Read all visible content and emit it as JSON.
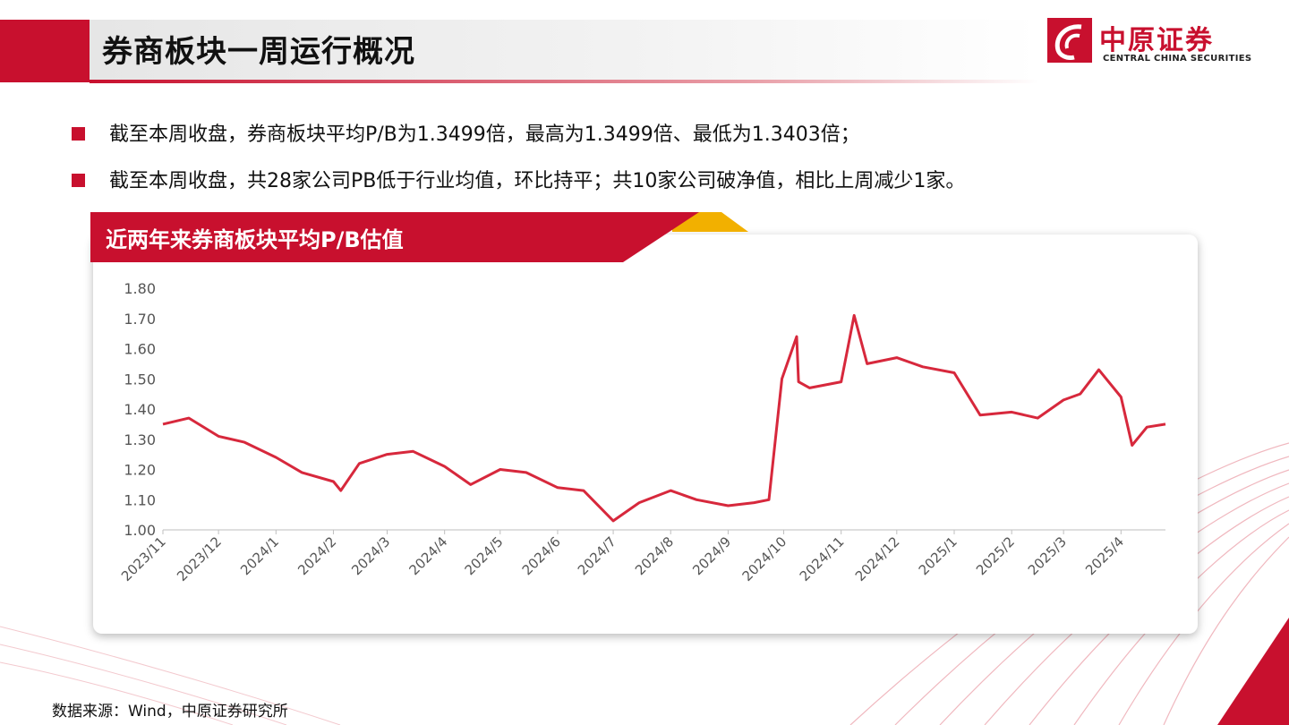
{
  "header": {
    "title": "券商板块一周运行概况",
    "logo_cn": "中原证券",
    "logo_en": "CENTRAL CHINA SECURITIES"
  },
  "bullets": [
    "截至本周收盘，券商板块平均P/B为1.3499倍，最高为1.3499倍、最低为1.3403倍；",
    "截至本周收盘，共28家公司PB低于行业均值，环比持平；共10家公司破净值，相比上周减少1家。"
  ],
  "colors": {
    "accent": "#c8102e",
    "line": "#d7283c",
    "banner_gold": "#f2b000"
  },
  "chart_data": {
    "type": "line",
    "title": "近两年来券商板块平均P/B估值",
    "ylim": [
      1.0,
      1.8
    ],
    "ytick_labels": [
      "1.00",
      "1.10",
      "1.20",
      "1.30",
      "1.40",
      "1.50",
      "1.60",
      "1.70",
      "1.80"
    ],
    "xtick_labels": [
      "2023/11",
      "2023/12",
      "2024/1",
      "2024/2",
      "2024/3",
      "2024/4",
      "2024/5",
      "2024/6",
      "2024/7",
      "2024/8",
      "2024/9",
      "2024/10",
      "2024/11",
      "2024/12",
      "2025/1",
      "2025/2",
      "2025/3",
      "2025/4"
    ],
    "x": [
      "2023-11-01",
      "2023-11-15",
      "2023-12-01",
      "2023-12-15",
      "2024-01-01",
      "2024-01-15",
      "2024-02-01",
      "2024-02-05",
      "2024-02-15",
      "2024-03-01",
      "2024-03-15",
      "2024-04-01",
      "2024-04-15",
      "2024-05-01",
      "2024-05-15",
      "2024-06-01",
      "2024-06-15",
      "2024-07-01",
      "2024-07-15",
      "2024-08-01",
      "2024-08-15",
      "2024-09-01",
      "2024-09-15",
      "2024-09-23",
      "2024-09-30",
      "2024-10-08",
      "2024-10-09",
      "2024-10-15",
      "2024-11-01",
      "2024-11-08",
      "2024-11-15",
      "2024-12-01",
      "2024-12-15",
      "2025-01-01",
      "2025-01-15",
      "2025-02-01",
      "2025-02-15",
      "2025-03-01",
      "2025-03-10",
      "2025-03-20",
      "2025-04-01",
      "2025-04-07",
      "2025-04-15",
      "2025-04-25"
    ],
    "y": [
      1.35,
      1.37,
      1.31,
      1.29,
      1.24,
      1.19,
      1.16,
      1.13,
      1.22,
      1.25,
      1.26,
      1.21,
      1.15,
      1.2,
      1.19,
      1.14,
      1.13,
      1.03,
      1.09,
      1.13,
      1.1,
      1.08,
      1.09,
      1.1,
      1.5,
      1.64,
      1.49,
      1.47,
      1.49,
      1.71,
      1.55,
      1.57,
      1.54,
      1.52,
      1.38,
      1.39,
      1.37,
      1.43,
      1.45,
      1.53,
      1.44,
      1.28,
      1.34,
      1.35
    ]
  },
  "source": "数据来源：Wind，中原证券研究所"
}
